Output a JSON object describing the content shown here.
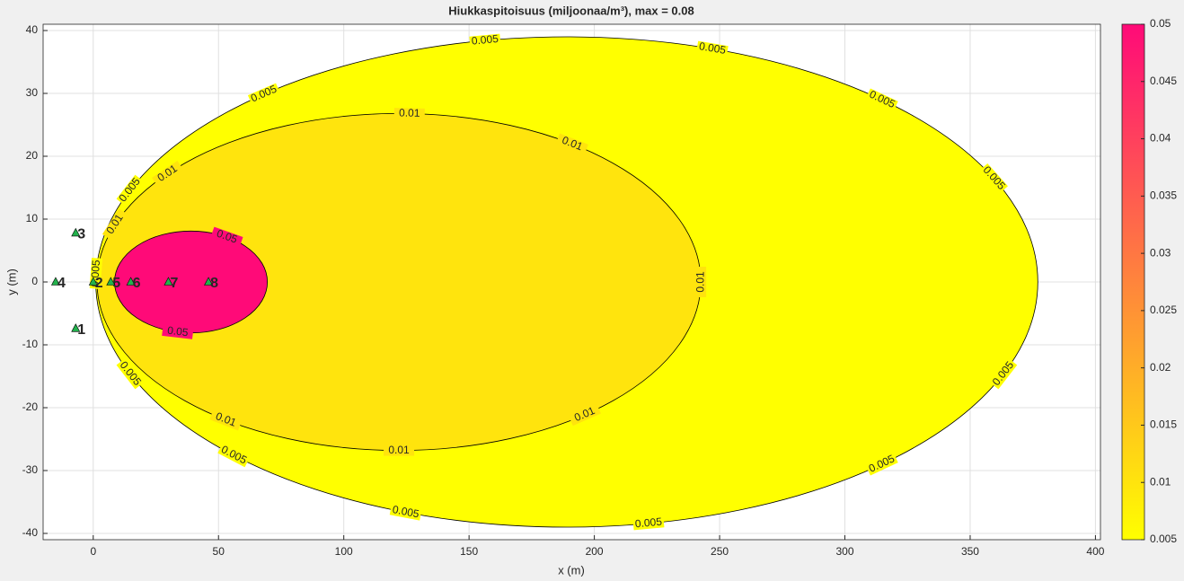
{
  "chart_data": {
    "type": "contour",
    "title": "Hiukkaspitoisuus (miljoonaa/m³), max =  0.08",
    "xlabel": "x (m)",
    "ylabel": "y (m)",
    "xlim": [
      -20,
      402
    ],
    "ylim": [
      -41,
      41
    ],
    "xticks": [
      0,
      50,
      100,
      150,
      200,
      250,
      300,
      350,
      400
    ],
    "yticks": [
      -40,
      -30,
      -20,
      -10,
      0,
      10,
      20,
      30,
      40
    ],
    "grid": true,
    "colormap": [
      "#ffff00",
      "#ff0a78"
    ],
    "clim": [
      0.005,
      0.05
    ],
    "cticks": [
      0.005,
      0.01,
      0.015,
      0.02,
      0.025,
      0.03,
      0.035,
      0.04,
      0.045,
      0.05
    ],
    "contours": [
      {
        "level": 0.005,
        "cx": 189,
        "rx": 188,
        "ry": 39
      },
      {
        "level": 0.01,
        "cx": 122,
        "rx": 120.5,
        "ry": 26.8
      },
      {
        "level": 0.05,
        "cx": 39,
        "rx": 30.5,
        "ry": 8.1
      }
    ],
    "points": [
      {
        "label": "1",
        "x": -7,
        "y": -7.4
      },
      {
        "label": "2",
        "x": 0,
        "y": 0
      },
      {
        "label": "3",
        "x": -7,
        "y": 7.8
      },
      {
        "label": "4",
        "x": -15,
        "y": 0
      },
      {
        "label": "5",
        "x": 7,
        "y": 0
      },
      {
        "label": "6",
        "x": 15,
        "y": 0
      },
      {
        "label": "7",
        "x": 30,
        "y": 0
      },
      {
        "label": "8",
        "x": 46,
        "y": 0
      }
    ],
    "point_color": "#22b14c"
  }
}
